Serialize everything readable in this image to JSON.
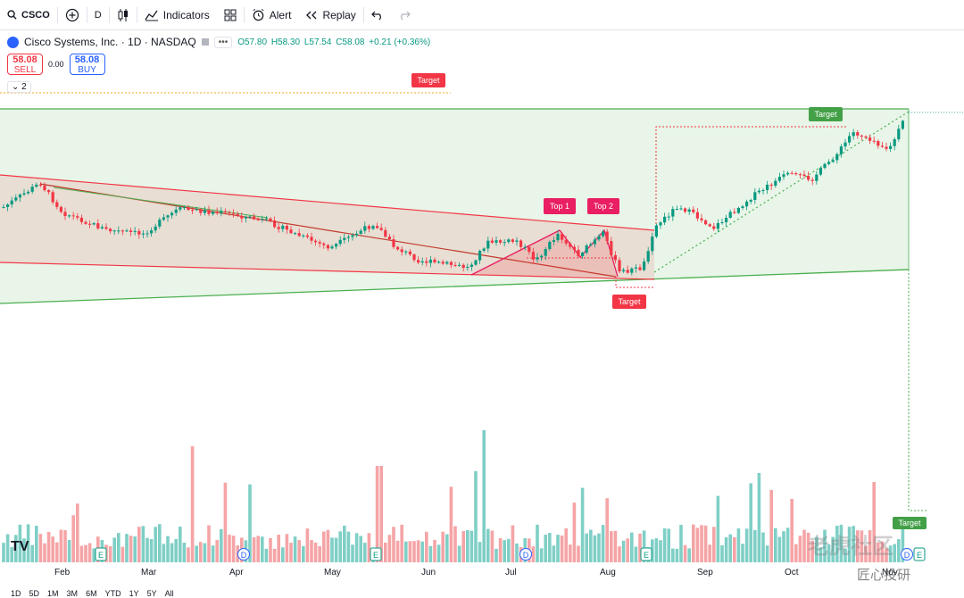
{
  "toolbar": {
    "symbol": "CSCO",
    "interval": "D",
    "indicators_label": "Indicators",
    "alert_label": "Alert",
    "replay_label": "Replay"
  },
  "legend": {
    "name": "Cisco Systems, Inc. · 1D · NASDAQ",
    "open": "O57.80",
    "high": "H58.30",
    "low": "L57.54",
    "close": "C58.08",
    "change": "+0.21 (+0.36%)"
  },
  "trade": {
    "sell_price": "58.08",
    "sell_label": "SELL",
    "spread": "0.00",
    "buy_price": "58.08",
    "buy_label": "BUY"
  },
  "collapse_count": "2",
  "annotations": {
    "target": "Target",
    "top1": "Top 1",
    "top2": "Top 2"
  },
  "x_axis": [
    "Feb",
    "Mar",
    "Apr",
    "May",
    "Jun",
    "Jul",
    "Aug",
    "Sep",
    "Oct",
    "Nov"
  ],
  "event_markers": [
    "E",
    "D",
    "E",
    "D",
    "E",
    "D",
    "E"
  ],
  "ranges": [
    "1D",
    "5D",
    "1M",
    "3M",
    "6M",
    "YTD",
    "1Y",
    "5Y",
    "All"
  ],
  "watermark": {
    "brand1": "老虎社区",
    "brand2": "匠心投研",
    "tv": "TV"
  },
  "colors": {
    "up": "#089981",
    "down": "#f23645",
    "green_zone": "#4caf50",
    "red_zone": "#f23645"
  }
}
